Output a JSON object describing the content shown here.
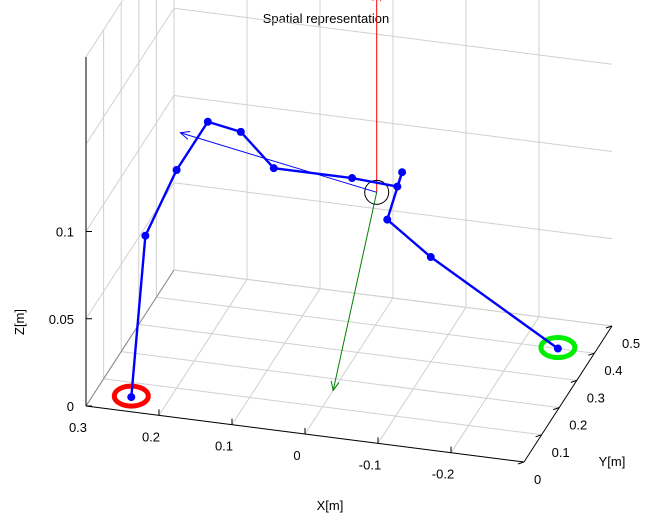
{
  "chart_data": {
    "type": "line3d",
    "title": "Spatial representation",
    "xlabel": "X[m]",
    "ylabel": "Y[m]",
    "zlabel": "Z[m]",
    "xlim": [
      -0.3,
      0.3
    ],
    "ylim": [
      0,
      0.5
    ],
    "zlim": [
      0,
      0.2
    ],
    "x_ticks": [
      {
        "value": 0.3,
        "label": "0.3"
      },
      {
        "value": 0.2,
        "label": "0.2"
      },
      {
        "value": 0.1,
        "label": "0.1"
      },
      {
        "value": 0,
        "label": "0"
      },
      {
        "value": -0.1,
        "label": "-0.1"
      },
      {
        "value": -0.2,
        "label": "-0.2"
      }
    ],
    "y_ticks": [
      {
        "value": 0,
        "label": "0"
      },
      {
        "value": 0.1,
        "label": "0.1"
      },
      {
        "value": 0.2,
        "label": "0.2"
      },
      {
        "value": 0.3,
        "label": "0.3"
      },
      {
        "value": 0.4,
        "label": "0.4"
      },
      {
        "value": 0.5,
        "label": "0.5"
      }
    ],
    "z_ticks": [
      {
        "value": 0,
        "label": "0"
      },
      {
        "value": 0.05,
        "label": "0.05"
      },
      {
        "value": 0.1,
        "label": "0.1"
      }
    ],
    "grid": true,
    "series": [
      {
        "color": "#0000ff",
        "points": [
          [
            0.25,
            0.05,
            0.0
          ],
          [
            0.25,
            0.13,
            0.08
          ],
          [
            0.2,
            0.1,
            0.125
          ],
          [
            0.15,
            0.07,
            0.16
          ],
          [
            0.1,
            0.05,
            0.16
          ],
          [
            0.05,
            0.03,
            0.145
          ],
          [
            -0.05,
            0.06,
            0.14
          ],
          [
            -0.1,
            0.11,
            0.13
          ],
          [
            -0.08,
            0.22,
            0.12
          ],
          [
            -0.05,
            0.26,
            0.085
          ],
          [
            -0.1,
            0.3,
            0.06
          ],
          [
            -0.25,
            0.4,
            0.0
          ]
        ]
      }
    ],
    "base_markers": [
      {
        "color": "#ff0000",
        "point": [
          0.25,
          0.05,
          0.0
        ]
      },
      {
        "color": "#00ee00",
        "point": [
          -0.25,
          0.4,
          0.0
        ]
      }
    ],
    "frame_marker": {
      "color": "#000000",
      "point": [
        -0.05,
        0.2,
        0.11
      ]
    },
    "frame_axes": [
      {
        "color": "#ff0000",
        "from": [
          -0.05,
          0.2,
          0.11
        ],
        "to": [
          -0.05,
          0.2,
          0.225
        ]
      },
      {
        "color": "#008000",
        "from": [
          -0.05,
          0.2,
          0.11
        ],
        "to": [
          0.0,
          0.16,
          0.0
        ]
      },
      {
        "color": "#0000ff",
        "from": [
          -0.05,
          0.2,
          0.11
        ],
        "to": [
          0.19,
          0.08,
          0.15
        ]
      }
    ]
  }
}
